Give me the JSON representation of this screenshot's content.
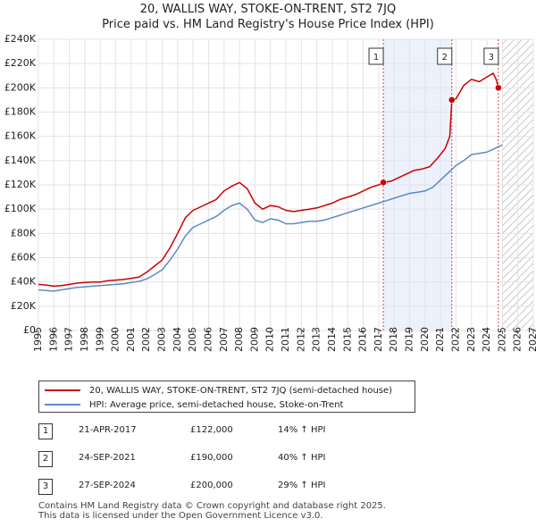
{
  "chart_data": {
    "type": "line",
    "title": "20, WALLIS WAY, STOKE-ON-TRENT, ST2 7JQ",
    "subtitle": "Price paid vs. HM Land Registry's House Price Index (HPI)",
    "xlim": [
      1995,
      2027
    ],
    "ylim": [
      0,
      240000
    ],
    "y_ticks": [
      {
        "value": 0,
        "label": "£0"
      },
      {
        "value": 20000,
        "label": "£20K"
      },
      {
        "value": 40000,
        "label": "£40K"
      },
      {
        "value": 60000,
        "label": "£60K"
      },
      {
        "value": 80000,
        "label": "£80K"
      },
      {
        "value": 100000,
        "label": "£100K"
      },
      {
        "value": 120000,
        "label": "£120K"
      },
      {
        "value": 140000,
        "label": "£140K"
      },
      {
        "value": 160000,
        "label": "£160K"
      },
      {
        "value": 180000,
        "label": "£180K"
      },
      {
        "value": 200000,
        "label": "£200K"
      },
      {
        "value": 220000,
        "label": "£220K"
      },
      {
        "value": 240000,
        "label": "£240K"
      }
    ],
    "x_ticks": [
      "1995",
      "1996",
      "1997",
      "1998",
      "1999",
      "2000",
      "2001",
      "2002",
      "2003",
      "2004",
      "2005",
      "2006",
      "2007",
      "2008",
      "2009",
      "2010",
      "2011",
      "2012",
      "2013",
      "2014",
      "2015",
      "2016",
      "2017",
      "2018",
      "2019",
      "2020",
      "2021",
      "2022",
      "2023",
      "2024",
      "2025",
      "2026",
      "2027"
    ],
    "series": [
      {
        "name": "20, WALLIS WAY, STOKE-ON-TRENT, ST2 7JQ (semi-detached house)",
        "color": "#cc0000",
        "points": [
          [
            1995.0,
            38000
          ],
          [
            1995.5,
            37500
          ],
          [
            1996.0,
            36500
          ],
          [
            1996.5,
            37000
          ],
          [
            1997.0,
            38000
          ],
          [
            1997.5,
            39000
          ],
          [
            1998.0,
            39500
          ],
          [
            1998.5,
            40000
          ],
          [
            1999.0,
            40000
          ],
          [
            1999.5,
            41000
          ],
          [
            2000.0,
            41500
          ],
          [
            2000.5,
            42000
          ],
          [
            2001.0,
            43000
          ],
          [
            2001.5,
            44000
          ],
          [
            2002.0,
            48000
          ],
          [
            2002.5,
            53000
          ],
          [
            2003.0,
            58000
          ],
          [
            2003.5,
            68000
          ],
          [
            2004.0,
            80000
          ],
          [
            2004.5,
            93000
          ],
          [
            2005.0,
            99000
          ],
          [
            2005.5,
            102000
          ],
          [
            2006.0,
            105000
          ],
          [
            2006.5,
            108000
          ],
          [
            2007.0,
            115000
          ],
          [
            2007.5,
            119000
          ],
          [
            2008.0,
            122000
          ],
          [
            2008.5,
            117000
          ],
          [
            2009.0,
            105000
          ],
          [
            2009.5,
            100000
          ],
          [
            2010.0,
            103000
          ],
          [
            2010.5,
            102000
          ],
          [
            2011.0,
            99000
          ],
          [
            2011.5,
            98000
          ],
          [
            2012.0,
            99000
          ],
          [
            2012.5,
            100000
          ],
          [
            2013.0,
            101000
          ],
          [
            2013.5,
            103000
          ],
          [
            2014.0,
            105000
          ],
          [
            2014.5,
            108000
          ],
          [
            2015.0,
            110000
          ],
          [
            2015.5,
            112000
          ],
          [
            2016.0,
            115000
          ],
          [
            2016.5,
            118000
          ],
          [
            2017.0,
            120000
          ],
          [
            2017.3,
            122000
          ],
          [
            2017.8,
            123000
          ],
          [
            2018.3,
            126000
          ],
          [
            2018.8,
            129000
          ],
          [
            2019.3,
            132000
          ],
          [
            2019.8,
            133000
          ],
          [
            2020.3,
            135000
          ],
          [
            2020.8,
            142000
          ],
          [
            2021.3,
            150000
          ],
          [
            2021.6,
            160000
          ],
          [
            2021.73,
            190000
          ],
          [
            2022.0,
            191000
          ],
          [
            2022.5,
            202000
          ],
          [
            2023.0,
            207000
          ],
          [
            2023.5,
            205000
          ],
          [
            2024.0,
            209000
          ],
          [
            2024.4,
            212000
          ],
          [
            2024.6,
            207000
          ],
          [
            2024.74,
            200000
          ]
        ]
      },
      {
        "name": "HPI: Average price, semi-detached house, Stoke-on-Trent",
        "color": "#5b8ac6",
        "points": [
          [
            1995.0,
            33500
          ],
          [
            1995.5,
            33000
          ],
          [
            1996.0,
            32500
          ],
          [
            1996.5,
            33500
          ],
          [
            1997.0,
            34500
          ],
          [
            1997.5,
            35500
          ],
          [
            1998.0,
            36000
          ],
          [
            1998.5,
            36500
          ],
          [
            1999.0,
            37000
          ],
          [
            1999.5,
            37500
          ],
          [
            2000.0,
            38000
          ],
          [
            2000.5,
            38500
          ],
          [
            2001.0,
            39500
          ],
          [
            2001.5,
            40500
          ],
          [
            2002.0,
            42500
          ],
          [
            2002.5,
            46000
          ],
          [
            2003.0,
            50000
          ],
          [
            2003.5,
            58000
          ],
          [
            2004.0,
            67000
          ],
          [
            2004.5,
            78000
          ],
          [
            2005.0,
            85000
          ],
          [
            2005.5,
            88000
          ],
          [
            2006.0,
            91000
          ],
          [
            2006.5,
            94000
          ],
          [
            2007.0,
            99000
          ],
          [
            2007.5,
            103000
          ],
          [
            2008.0,
            105000
          ],
          [
            2008.5,
            100000
          ],
          [
            2009.0,
            91000
          ],
          [
            2009.5,
            89000
          ],
          [
            2010.0,
            92000
          ],
          [
            2010.5,
            91000
          ],
          [
            2011.0,
            88000
          ],
          [
            2011.5,
            88000
          ],
          [
            2012.0,
            89000
          ],
          [
            2012.5,
            90000
          ],
          [
            2013.0,
            90000
          ],
          [
            2013.5,
            91000
          ],
          [
            2014.0,
            93000
          ],
          [
            2014.5,
            95000
          ],
          [
            2015.0,
            97000
          ],
          [
            2015.5,
            99000
          ],
          [
            2016.0,
            101000
          ],
          [
            2016.5,
            103000
          ],
          [
            2017.0,
            105000
          ],
          [
            2017.5,
            107000
          ],
          [
            2018.0,
            109000
          ],
          [
            2018.5,
            111000
          ],
          [
            2019.0,
            113000
          ],
          [
            2019.5,
            114000
          ],
          [
            2020.0,
            115000
          ],
          [
            2020.5,
            118000
          ],
          [
            2021.0,
            124000
          ],
          [
            2021.5,
            130000
          ],
          [
            2022.0,
            136000
          ],
          [
            2022.5,
            140000
          ],
          [
            2023.0,
            145000
          ],
          [
            2023.5,
            146000
          ],
          [
            2024.0,
            147000
          ],
          [
            2024.5,
            150000
          ],
          [
            2025.0,
            153000
          ]
        ]
      }
    ],
    "sales": [
      {
        "id": "1",
        "x": 2017.3,
        "y": 122000
      },
      {
        "id": "2",
        "x": 2021.73,
        "y": 190000
      },
      {
        "id": "3",
        "x": 2024.74,
        "y": 200000
      }
    ],
    "shaded_ranges": [
      [
        2017.3,
        2021.73
      ]
    ],
    "future_from": 2025.0
  },
  "legend": {
    "property_label": "20, WALLIS WAY, STOKE-ON-TRENT, ST2 7JQ (semi-detached house)",
    "hpi_label": "HPI: Average price, semi-detached house, Stoke-on-Trent",
    "property_color": "#cc0000",
    "hpi_color": "#5b8ac6"
  },
  "transactions": [
    {
      "id": "1",
      "date": "21-APR-2017",
      "price": "£122,000",
      "hpi": "14% ↑ HPI"
    },
    {
      "id": "2",
      "date": "24-SEP-2021",
      "price": "£190,000",
      "hpi": "40% ↑ HPI"
    },
    {
      "id": "3",
      "date": "27-SEP-2024",
      "price": "£200,000",
      "hpi": "29% ↑ HPI"
    }
  ],
  "footer": {
    "line1": "Contains HM Land Registry data © Crown copyright and database right 2025.",
    "line2": "This data is licensed under the Open Government Licence v3.0."
  }
}
